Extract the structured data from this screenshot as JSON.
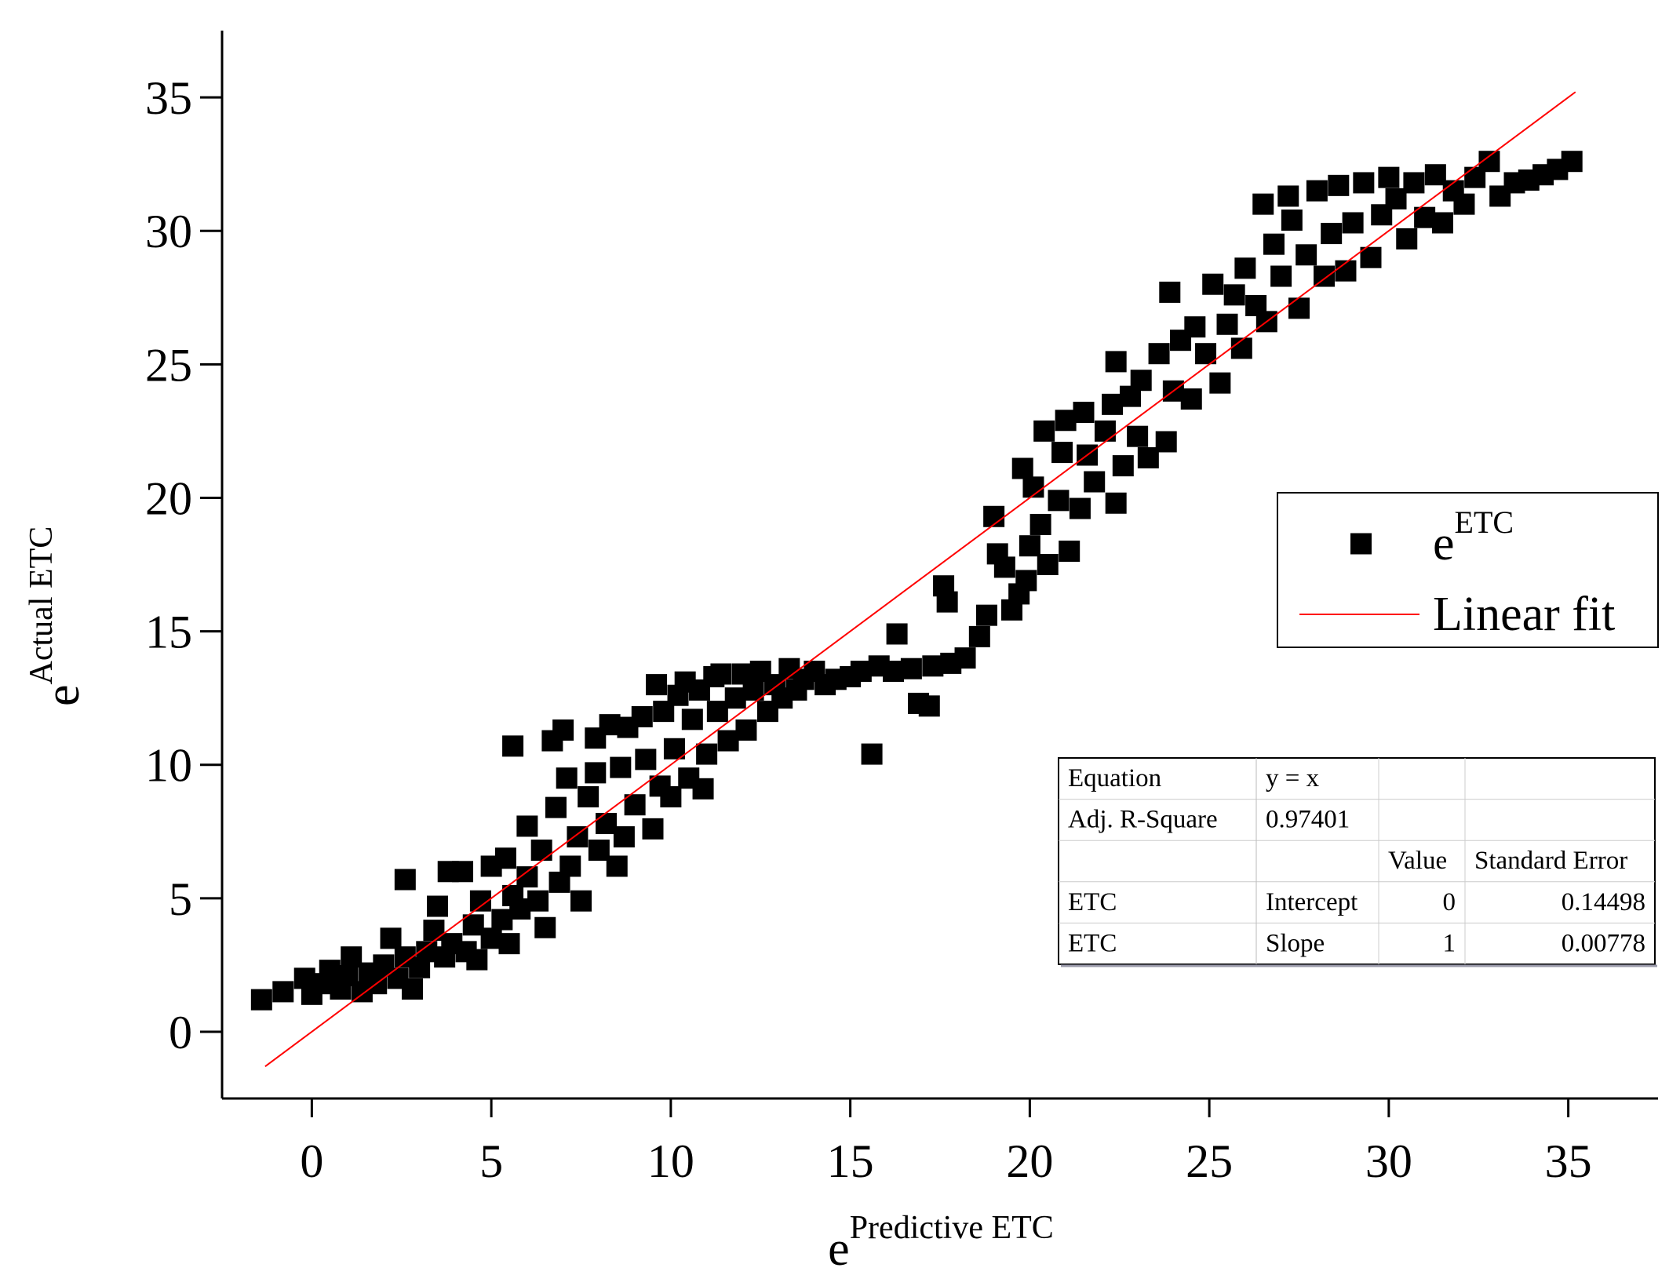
{
  "chart_data": {
    "type": "scatter",
    "x_label": {
      "base": "e",
      "sup": "Predictive ETC"
    },
    "y_label": {
      "base": "e",
      "sup": "Actual ETC"
    },
    "xlim": [
      -2.5,
      37.5
    ],
    "ylim": [
      -2.5,
      37.5
    ],
    "xticks": [
      0,
      5,
      10,
      15,
      20,
      25,
      30,
      35
    ],
    "yticks": [
      0,
      5,
      10,
      15,
      20,
      25,
      30,
      35
    ],
    "series": [
      {
        "name": {
          "base": "e",
          "sup": "ETC"
        },
        "kind": "scatter",
        "color": "#000000",
        "x": [
          -1.4,
          -0.8,
          -0.2,
          0,
          0.3,
          0.5,
          0.8,
          1,
          1.1,
          1.4,
          1.6,
          1.8,
          2.0,
          2.2,
          2.4,
          2.6,
          2.6,
          2.8,
          3.0,
          3.2,
          3.4,
          3.5,
          3.7,
          3.9,
          3.8,
          4.2,
          4.3,
          4.5,
          4.6,
          4.7,
          5.0,
          5.0,
          5.3,
          5.4,
          5.5,
          5.6,
          5.6,
          5.8,
          6.0,
          6.0,
          6.3,
          6.4,
          6.5,
          6.7,
          6.8,
          6.9,
          7.0,
          7.1,
          7.2,
          7.4,
          7.5,
          7.7,
          7.9,
          7.9,
          8.0,
          8.2,
          8.3,
          8.5,
          8.6,
          8.7,
          8.8,
          9.0,
          9.2,
          9.3,
          9.5,
          9.6,
          9.7,
          9.8,
          10.0,
          10.1,
          10.2,
          10.4,
          10.5,
          10.6,
          10.8,
          10.9,
          11.0,
          11.2,
          11.3,
          11.4,
          11.6,
          11.8,
          12.0,
          12.1,
          12.3,
          12.5,
          12.7,
          12.9,
          13.1,
          13.3,
          13.5,
          13.7,
          14.0,
          14.3,
          14.6,
          15.0,
          15.3,
          15.6,
          15.8,
          16.2,
          16.3,
          16.7,
          16.9,
          17.2,
          17.3,
          17.6,
          17.7,
          17.8,
          18.2,
          18.6,
          18.8,
          19.0,
          19.1,
          19.3,
          19.5,
          19.7,
          19.8,
          19.9,
          20.0,
          20.1,
          20.3,
          20.4,
          20.5,
          20.8,
          20.9,
          21.1,
          21.0,
          21.4,
          21.5,
          21.6,
          21.8,
          22.1,
          22.3,
          22.4,
          22.4,
          22.6,
          22.8,
          23.0,
          23.1,
          23.3,
          23.6,
          23.8,
          23.9,
          24.0,
          24.2,
          24.5,
          24.6,
          24.9,
          25.1,
          25.3,
          25.5,
          25.7,
          25.9,
          26.0,
          26.3,
          26.5,
          26.6,
          26.8,
          27.0,
          27.2,
          27.3,
          27.5,
          27.7,
          28.0,
          28.2,
          28.4,
          28.6,
          28.8,
          29.0,
          29.3,
          29.5,
          29.8,
          30.0,
          30.2,
          30.5,
          30.7,
          31.0,
          31.3,
          31.5,
          31.8,
          32.1,
          32.4,
          32.8,
          33.1,
          33.5,
          33.9,
          34.3,
          34.7,
          35.1
        ],
        "values": [
          1.2,
          1.5,
          2.0,
          1.4,
          1.8,
          2.3,
          1.6,
          2.1,
          2.8,
          1.5,
          2.2,
          1.8,
          2.5,
          3.5,
          2.0,
          2.8,
          5.7,
          1.6,
          2.4,
          3.0,
          3.8,
          4.7,
          2.8,
          3.3,
          6.0,
          6.0,
          3.0,
          4.0,
          2.7,
          4.9,
          3.5,
          6.2,
          4.2,
          6.5,
          3.3,
          5.1,
          10.7,
          4.6,
          7.7,
          5.8,
          4.9,
          6.8,
          3.9,
          10.9,
          8.4,
          5.6,
          11.3,
          9.5,
          6.2,
          7.3,
          4.9,
          8.8,
          9.7,
          11.0,
          6.8,
          7.8,
          11.5,
          6.2,
          9.9,
          7.3,
          11.4,
          8.5,
          11.8,
          10.2,
          7.6,
          13.0,
          9.2,
          12.0,
          8.8,
          10.6,
          12.6,
          13.1,
          9.5,
          11.7,
          12.8,
          9.1,
          10.4,
          13.3,
          12.0,
          13.4,
          10.9,
          12.5,
          13.4,
          11.3,
          12.8,
          13.5,
          12.0,
          13.0,
          12.5,
          13.6,
          12.8,
          13.2,
          13.5,
          13.0,
          13.2,
          13.3,
          13.5,
          10.4,
          13.7,
          13.5,
          14.9,
          13.6,
          12.3,
          12.2,
          13.7,
          16.7,
          16.1,
          13.8,
          14.0,
          14.8,
          15.6,
          19.3,
          17.9,
          17.4,
          15.8,
          16.4,
          21.1,
          16.9,
          18.2,
          20.4,
          19.0,
          22.5,
          17.5,
          19.9,
          21.7,
          18.0,
          22.9,
          19.6,
          23.2,
          21.6,
          20.6,
          22.5,
          23.5,
          19.8,
          25.1,
          21.2,
          23.8,
          22.3,
          24.4,
          21.5,
          25.4,
          22.1,
          27.7,
          24.0,
          25.9,
          23.7,
          26.4,
          25.4,
          28.0,
          24.3,
          26.5,
          27.6,
          25.6,
          28.6,
          27.2,
          31.0,
          26.6,
          29.5,
          28.3,
          31.3,
          30.4,
          27.1,
          29.1,
          31.5,
          28.3,
          29.9,
          31.7,
          28.5,
          30.3,
          31.8,
          29.0,
          30.6,
          32.0,
          31.2,
          29.7,
          31.8,
          30.5,
          32.1,
          30.3,
          31.5,
          31.0,
          32.0,
          32.6,
          31.3,
          31.8,
          31.9,
          32.1,
          32.3,
          32.6
        ]
      },
      {
        "name": "Linear fit",
        "kind": "line",
        "color": "#ff0000",
        "x": [
          -1.3,
          35.2
        ],
        "values": [
          -1.3,
          35.2
        ]
      }
    ],
    "table": {
      "rows": [
        [
          "Equation",
          "y = x",
          null,
          null
        ],
        [
          "Adj. R-Square",
          "0.97401",
          null,
          null
        ],
        [
          null,
          null,
          "Value",
          "Standard Error"
        ],
        [
          "ETC",
          "Intercept",
          "0",
          "0.14498"
        ],
        [
          "ETC",
          "Slope",
          "1",
          "0.00778"
        ]
      ]
    }
  }
}
